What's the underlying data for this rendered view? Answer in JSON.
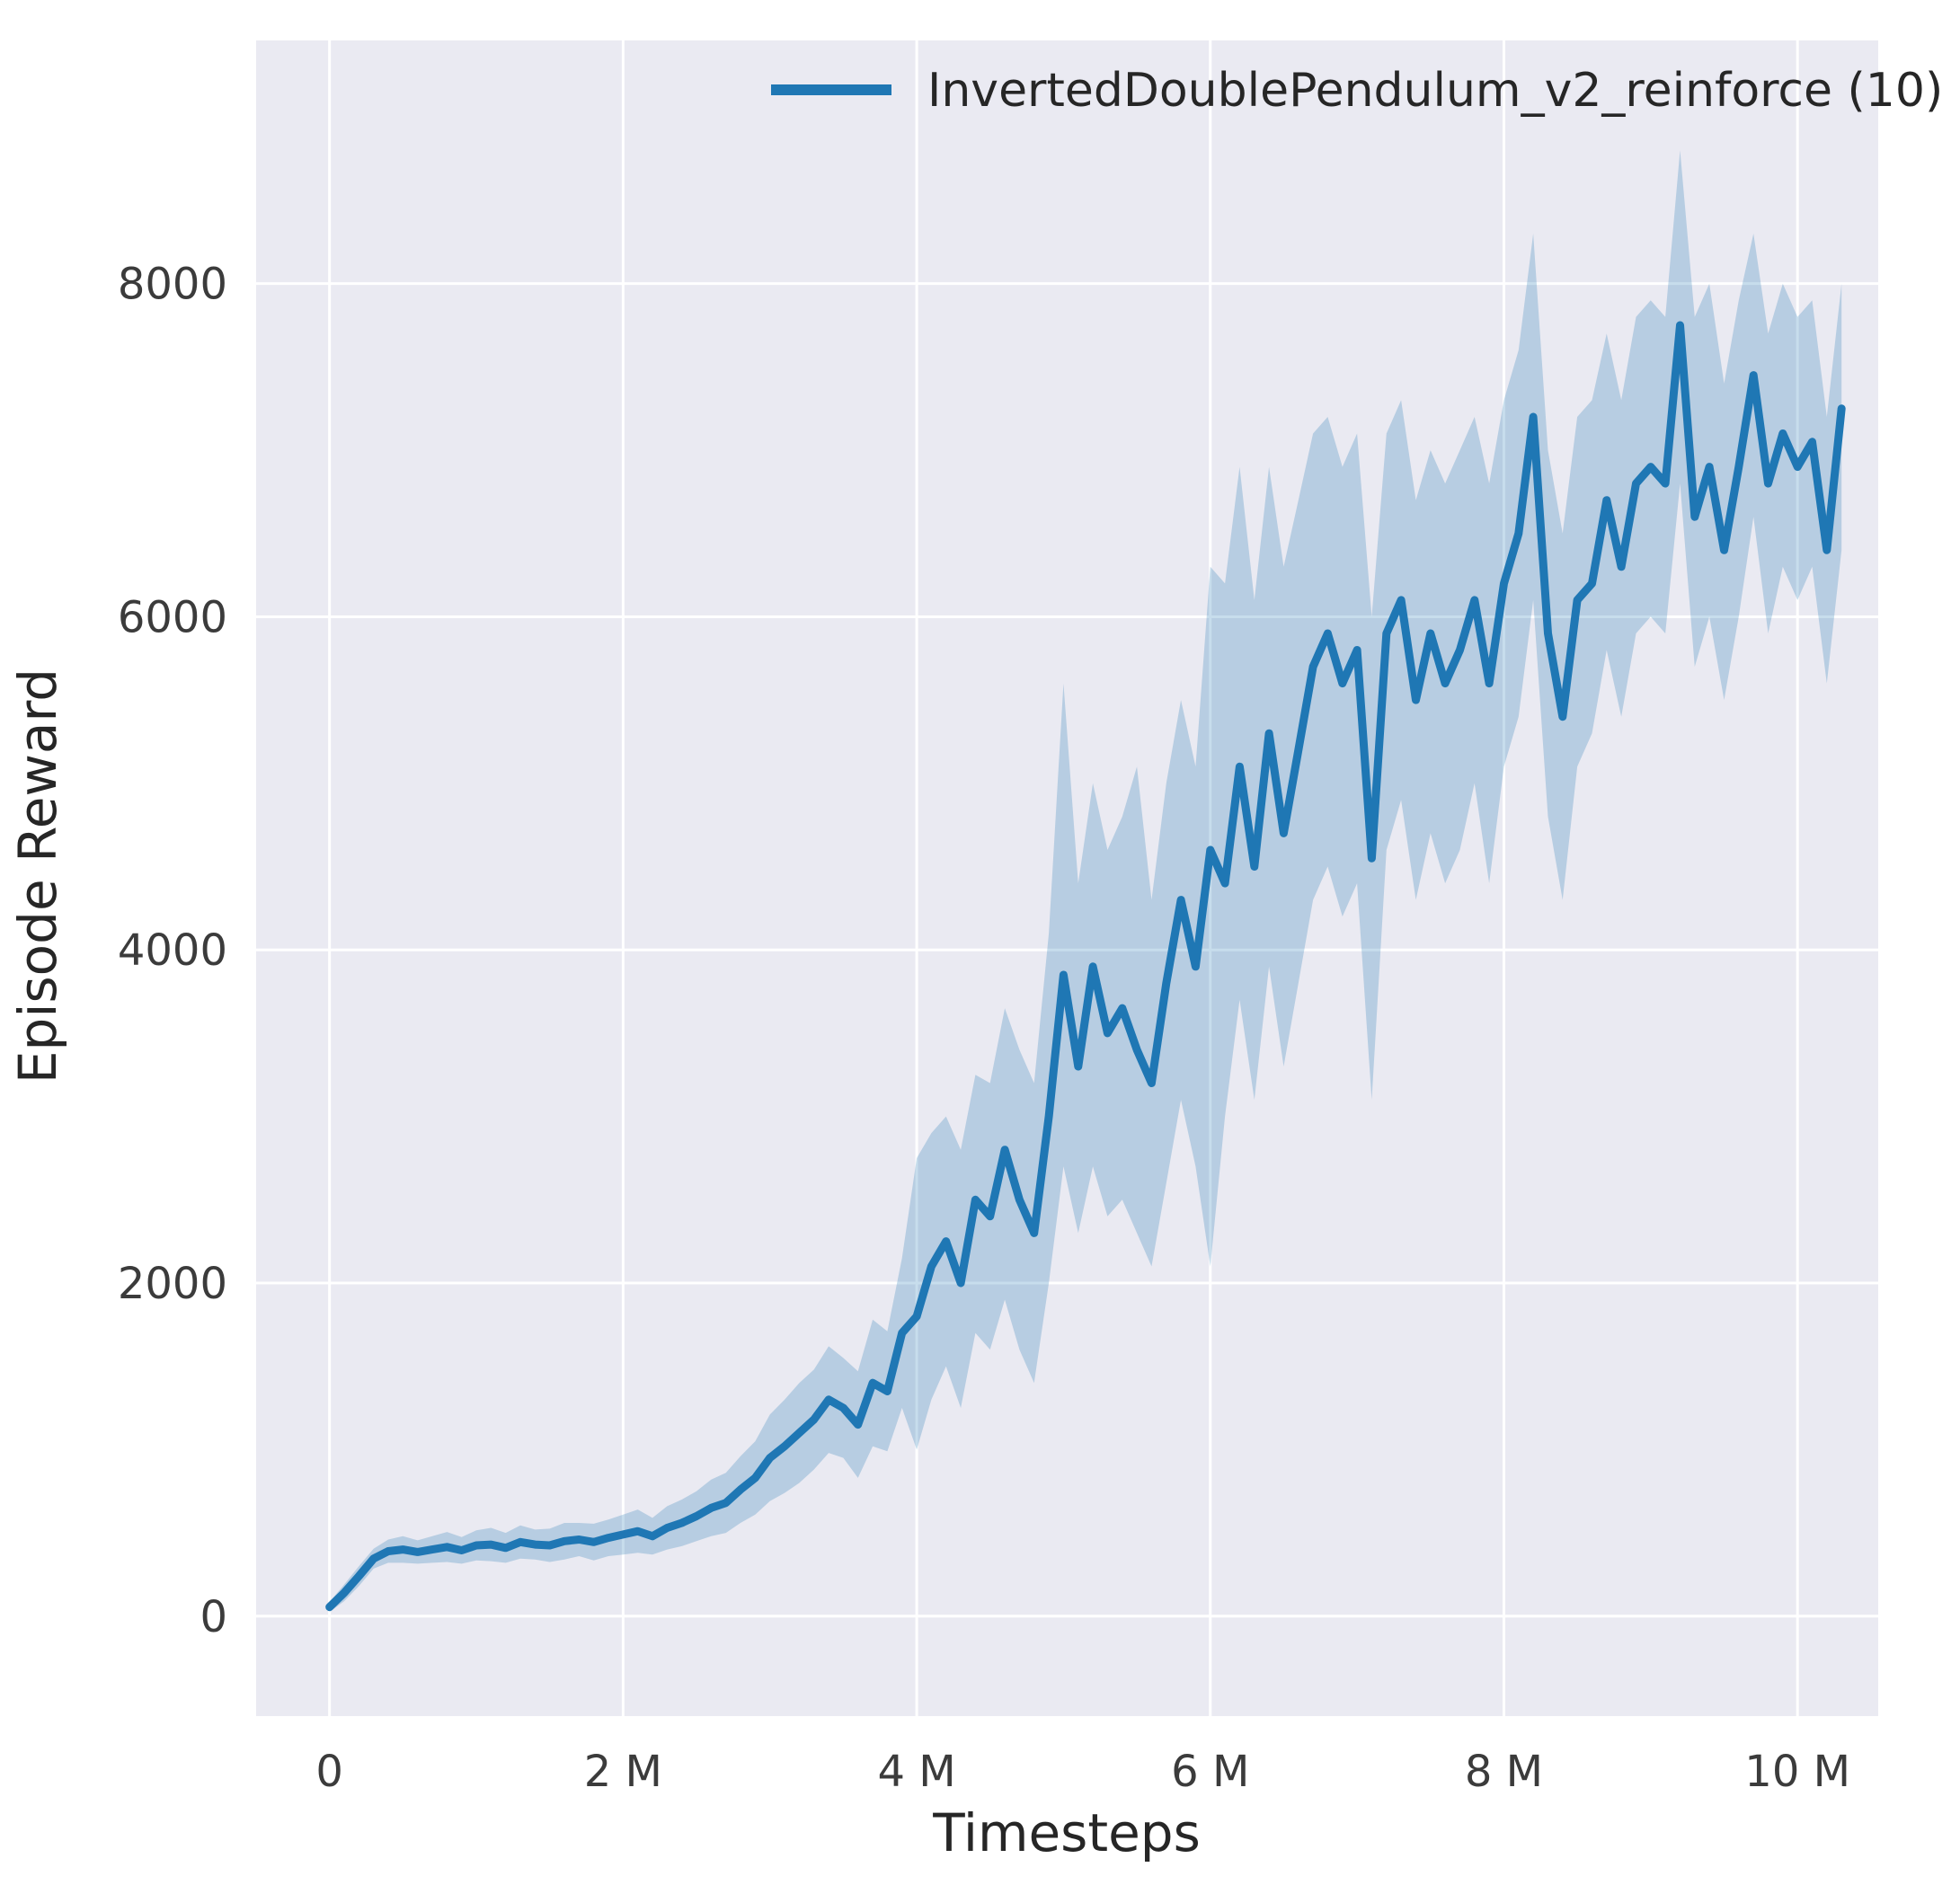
{
  "chart_data": {
    "type": "line",
    "title": "",
    "xlabel": "Timesteps",
    "ylabel": "Episode Reward",
    "x_unit": "timesteps (data x values stored in millions)",
    "xlim": [
      -500000,
      10550000
    ],
    "ylim": [
      -600,
      9460
    ],
    "grid": true,
    "legend_position": "upper center",
    "background_color": "#eaeaf2",
    "grid_color": "#ffffff",
    "line_color": "#1f77b4",
    "band_color": "#1f77b4",
    "band_opacity": 0.25,
    "x_ticks": [
      {
        "value": 0,
        "label": "0"
      },
      {
        "value": 2000000,
        "label": "2 M"
      },
      {
        "value": 4000000,
        "label": "4 M"
      },
      {
        "value": 6000000,
        "label": "6 M"
      },
      {
        "value": 8000000,
        "label": "8 M"
      },
      {
        "value": 10000000,
        "label": "10 M"
      }
    ],
    "y_ticks": [
      {
        "value": 0,
        "label": "0"
      },
      {
        "value": 2000,
        "label": "2000"
      },
      {
        "value": 4000,
        "label": "4000"
      },
      {
        "value": 6000,
        "label": "6000"
      },
      {
        "value": 8000,
        "label": "8000"
      }
    ],
    "series": [
      {
        "name": "InvertedDoublePendulum_v2_reinforce (10)",
        "x_millions": [
          0.0,
          0.1,
          0.2,
          0.3,
          0.4,
          0.5,
          0.6,
          0.7,
          0.8,
          0.9,
          1.0,
          1.1,
          1.2,
          1.3,
          1.4,
          1.5,
          1.6,
          1.7,
          1.8,
          1.9,
          2.0,
          2.1,
          2.2,
          2.3,
          2.4,
          2.5,
          2.6,
          2.7,
          2.8,
          2.9,
          3.0,
          3.1,
          3.2,
          3.3,
          3.4,
          3.5,
          3.6,
          3.7,
          3.8,
          3.9,
          4.0,
          4.1,
          4.2,
          4.3,
          4.4,
          4.5,
          4.6,
          4.7,
          4.8,
          4.9,
          5.0,
          5.1,
          5.2,
          5.3,
          5.4,
          5.5,
          5.6,
          5.7,
          5.8,
          5.9,
          6.0,
          6.1,
          6.2,
          6.3,
          6.4,
          6.5,
          6.6,
          6.7,
          6.8,
          6.9,
          7.0,
          7.1,
          7.2,
          7.3,
          7.4,
          7.5,
          7.6,
          7.7,
          7.8,
          7.9,
          8.0,
          8.1,
          8.2,
          8.3,
          8.4,
          8.5,
          8.6,
          8.7,
          8.8,
          8.9,
          9.0,
          9.1,
          9.2,
          9.3,
          9.4,
          9.5,
          9.6,
          9.7,
          9.8,
          9.9,
          10.0,
          10.1,
          10.2,
          10.3
        ],
        "mean": [
          55,
          140,
          240,
          345,
          390,
          400,
          385,
          400,
          415,
          395,
          425,
          430,
          410,
          445,
          430,
          425,
          450,
          460,
          445,
          470,
          490,
          510,
          480,
          530,
          560,
          600,
          650,
          680,
          760,
          830,
          950,
          1020,
          1100,
          1180,
          1300,
          1250,
          1150,
          1400,
          1350,
          1700,
          1800,
          2100,
          2250,
          2000,
          2500,
          2400,
          2800,
          2500,
          2300,
          3000,
          3850,
          3300,
          3900,
          3500,
          3650,
          3400,
          3200,
          3800,
          4300,
          3900,
          4600,
          4400,
          5100,
          4500,
          5300,
          4700,
          5200,
          5700,
          5900,
          5600,
          5800,
          4550,
          5900,
          6100,
          5500,
          5900,
          5600,
          5800,
          6100,
          5600,
          6200,
          6500,
          7200,
          5900,
          5400,
          6100,
          6200,
          6700,
          6300,
          6800,
          6900,
          6800,
          7750,
          6600,
          6900,
          6400,
          6900,
          7450,
          6800,
          7100,
          6900,
          7050,
          6400,
          7250
        ],
        "band_low": [
          25,
          90,
          180,
          285,
          320,
          320,
          315,
          320,
          325,
          315,
          335,
          330,
          320,
          345,
          340,
          325,
          340,
          360,
          335,
          360,
          370,
          380,
          370,
          400,
          420,
          450,
          480,
          500,
          560,
          610,
          690,
          740,
          800,
          880,
          980,
          950,
          830,
          1020,
          990,
          1250,
          1000,
          1300,
          1500,
          1250,
          1700,
          1600,
          1900,
          1600,
          1400,
          2000,
          2700,
          2300,
          2700,
          2400,
          2500,
          2300,
          2100,
          2600,
          3100,
          2700,
          2100,
          3000,
          3700,
          3100,
          3900,
          3300,
          3800,
          4300,
          4500,
          4200,
          4400,
          3100,
          4600,
          4900,
          4300,
          4700,
          4400,
          4600,
          5000,
          4400,
          5100,
          5400,
          6100,
          4800,
          4300,
          5100,
          5300,
          5800,
          5400,
          5900,
          6000,
          5900,
          6800,
          5700,
          6000,
          5500,
          6000,
          6600,
          5900,
          6300,
          6100,
          6300,
          5600,
          6400
        ],
        "band_high": [
          85,
          190,
          300,
          405,
          460,
          480,
          455,
          480,
          505,
          475,
          515,
          530,
          500,
          545,
          520,
          525,
          560,
          560,
          555,
          580,
          610,
          640,
          590,
          660,
          700,
          750,
          820,
          860,
          960,
          1050,
          1210,
          1300,
          1400,
          1480,
          1620,
          1550,
          1470,
          1780,
          1710,
          2150,
          2750,
          2900,
          3000,
          2800,
          3250,
          3200,
          3650,
          3400,
          3200,
          4100,
          5600,
          4400,
          5000,
          4600,
          4800,
          5100,
          4300,
          5000,
          5500,
          5100,
          6300,
          6200,
          6900,
          6100,
          6900,
          6300,
          6700,
          7100,
          7200,
          6900,
          7100,
          6000,
          7100,
          7300,
          6700,
          7000,
          6800,
          7000,
          7200,
          6800,
          7300,
          7600,
          8300,
          7000,
          6500,
          7200,
          7300,
          7700,
          7300,
          7800,
          7900,
          7800,
          8800,
          7800,
          8000,
          7400,
          7900,
          8300,
          7700,
          8000,
          7800,
          7900,
          7200,
          8000
        ]
      }
    ]
  }
}
